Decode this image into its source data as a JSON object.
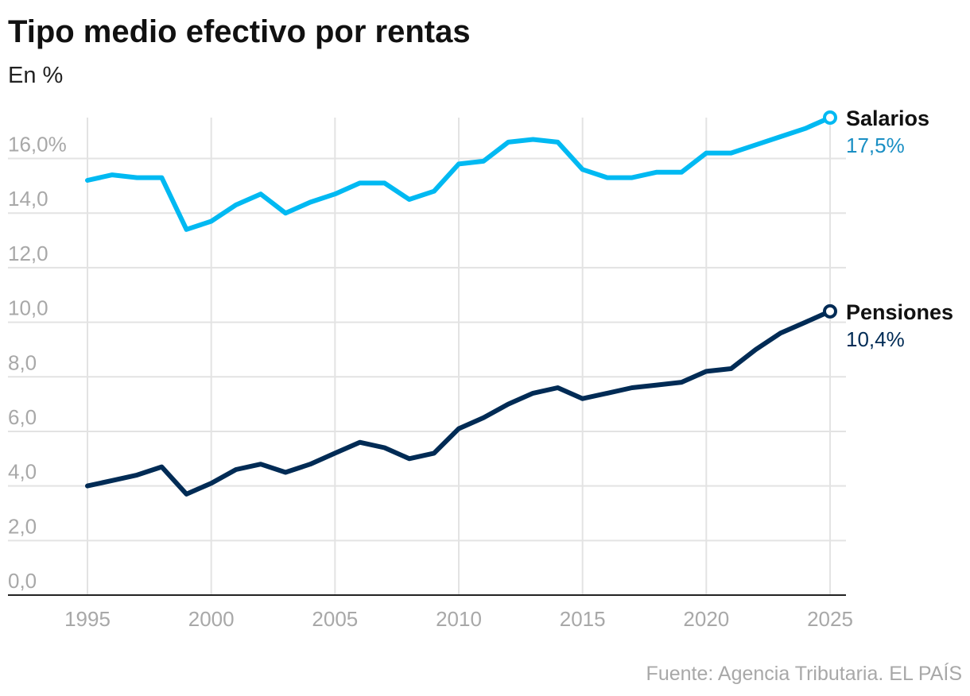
{
  "chart_data": {
    "type": "line",
    "title": "Tipo medio efectivo por rentas",
    "subtitle": "En %",
    "source": "Fuente: Agencia Tributaria. EL PAÍS",
    "ylim": [
      0,
      17.5
    ],
    "yticks": [
      0,
      2,
      4,
      6,
      8,
      10,
      12,
      14,
      16
    ],
    "ytick_labels": [
      "0,0",
      "2,0",
      "4,0",
      "6,0",
      "8,0",
      "10,0",
      "12,0",
      "14,0",
      "16,0%"
    ],
    "xlim": [
      1995,
      2025
    ],
    "xticks": [
      1995,
      2000,
      2005,
      2010,
      2015,
      2020,
      2025
    ],
    "xtick_labels": [
      "1995",
      "2000",
      "2005",
      "2010",
      "2015",
      "2020",
      "2025"
    ],
    "grid": "vertical-and-horizontal",
    "x": [
      1995,
      1996,
      1997,
      1998,
      1999,
      2000,
      2001,
      2002,
      2003,
      2004,
      2005,
      2006,
      2007,
      2008,
      2009,
      2010,
      2011,
      2012,
      2013,
      2014,
      2015,
      2016,
      2017,
      2018,
      2019,
      2020,
      2021,
      2022,
      2023,
      2024,
      2025
    ],
    "series": [
      {
        "name": "Salarios",
        "end_label": "17,5%",
        "color": "#00b9f2",
        "label_color": "#1a8fc4",
        "values": [
          15.2,
          15.4,
          15.3,
          15.3,
          13.4,
          13.7,
          14.3,
          14.7,
          14.0,
          14.4,
          14.7,
          15.1,
          15.1,
          14.5,
          14.8,
          15.8,
          15.9,
          16.6,
          16.7,
          16.6,
          15.6,
          15.3,
          15.3,
          15.5,
          15.5,
          16.2,
          16.2,
          16.5,
          16.8,
          17.1,
          17.5
        ]
      },
      {
        "name": "Pensiones",
        "end_label": "10,4%",
        "color": "#002b55",
        "label_color": "#002b55",
        "values": [
          4.0,
          4.2,
          4.4,
          4.7,
          3.7,
          4.1,
          4.6,
          4.8,
          4.5,
          4.8,
          5.2,
          5.6,
          5.4,
          5.0,
          5.2,
          6.1,
          6.5,
          7.0,
          7.4,
          7.6,
          7.2,
          7.4,
          7.6,
          7.7,
          7.8,
          8.2,
          8.3,
          9.0,
          9.6,
          10.0,
          10.4
        ]
      }
    ]
  }
}
